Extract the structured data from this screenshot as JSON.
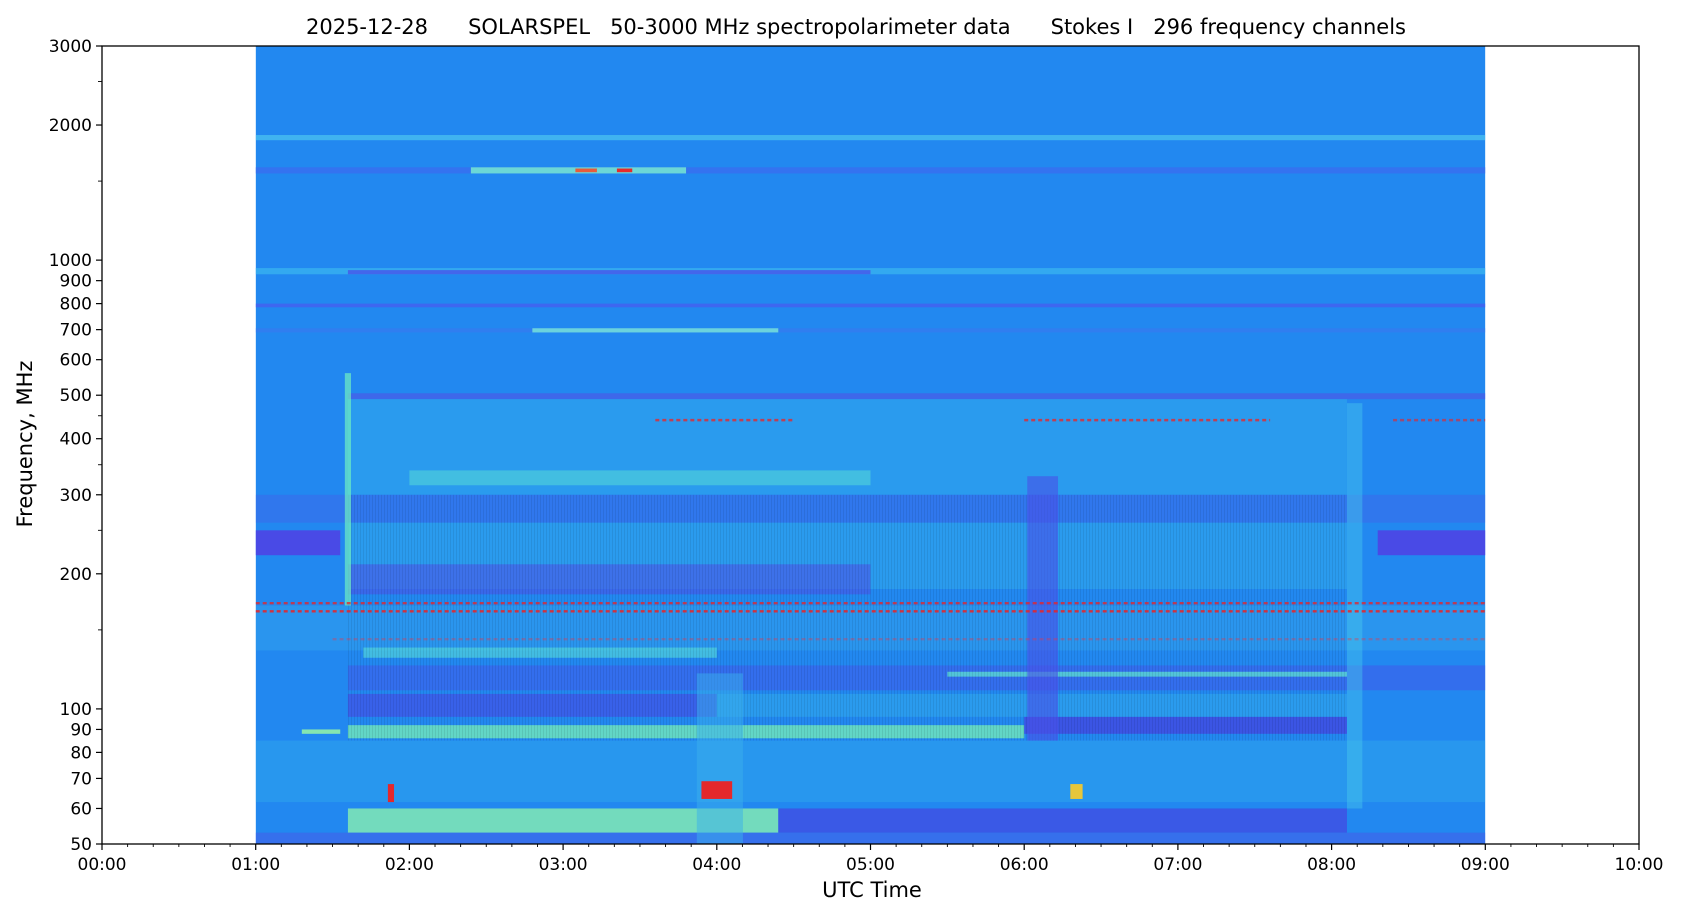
{
  "chart_data": {
    "type": "heatmap",
    "title": "2025-12-28      SOLARSPEL   50-3000 MHz spectropolarimeter data      Stokes I   296 frequency channels",
    "xlabel": "UTC Time",
    "ylabel": "Frequency, MHz",
    "x_range_hours": [
      0,
      10
    ],
    "y_range_mhz": [
      50,
      3000
    ],
    "y_scale": "log",
    "data_range_hours": [
      1,
      9
    ],
    "grid": false,
    "x_ticks": [
      {
        "hour": 0,
        "label": "00:00"
      },
      {
        "hour": 1,
        "label": "01:00"
      },
      {
        "hour": 2,
        "label": "02:00"
      },
      {
        "hour": 3,
        "label": "03:00"
      },
      {
        "hour": 4,
        "label": "04:00"
      },
      {
        "hour": 5,
        "label": "05:00"
      },
      {
        "hour": 6,
        "label": "06:00"
      },
      {
        "hour": 7,
        "label": "07:00"
      },
      {
        "hour": 8,
        "label": "08:00"
      },
      {
        "hour": 9,
        "label": "09:00"
      },
      {
        "hour": 10,
        "label": "10:00"
      }
    ],
    "y_ticks": [
      {
        "mhz": 50,
        "label": "50"
      },
      {
        "mhz": 60,
        "label": "60"
      },
      {
        "mhz": 70,
        "label": "70"
      },
      {
        "mhz": 80,
        "label": "80"
      },
      {
        "mhz": 90,
        "label": "90"
      },
      {
        "mhz": 100,
        "label": "100"
      },
      {
        "mhz": 200,
        "label": "200"
      },
      {
        "mhz": 300,
        "label": "300"
      },
      {
        "mhz": 400,
        "label": "400"
      },
      {
        "mhz": 500,
        "label": "500"
      },
      {
        "mhz": 600,
        "label": "600"
      },
      {
        "mhz": 700,
        "label": "700"
      },
      {
        "mhz": 800,
        "label": "800"
      },
      {
        "mhz": 900,
        "label": "900"
      },
      {
        "mhz": 1000,
        "label": "1000"
      },
      {
        "mhz": 2000,
        "label": "2000"
      },
      {
        "mhz": 3000,
        "label": "3000"
      }
    ],
    "y_minor_ticks_mhz": [
      150,
      250,
      350,
      450,
      1500,
      2500
    ],
    "colors": {
      "background": "#2288f0",
      "low": "#4455ee",
      "mid": "#33bbee",
      "high": "#66f0aa",
      "peak": "#ee2222",
      "dark": "#3a48e6"
    },
    "bands": [
      {
        "f1": 1850,
        "f2": 1900,
        "t1": 1.0,
        "t2": 9.0,
        "color": "#55d0f0",
        "opacity": 0.6
      },
      {
        "f1": 1560,
        "f2": 1610,
        "t1": 1.0,
        "t2": 9.0,
        "color": "#3a6ef0",
        "opacity": 0.8
      },
      {
        "f1": 1560,
        "f2": 1610,
        "t1": 2.4,
        "t2": 3.8,
        "color": "#7af0d0",
        "opacity": 0.8
      },
      {
        "f1": 930,
        "f2": 960,
        "t1": 1.0,
        "t2": 9.0,
        "color": "#3ab8f0",
        "opacity": 0.7
      },
      {
        "f1": 930,
        "f2": 950,
        "t1": 1.6,
        "t2": 5.0,
        "color": "#4a4ae8",
        "opacity": 0.7
      },
      {
        "f1": 785,
        "f2": 800,
        "t1": 1.0,
        "t2": 9.0,
        "color": "#4a5af0",
        "opacity": 0.7
      },
      {
        "f1": 690,
        "f2": 705,
        "t1": 1.0,
        "t2": 9.0,
        "color": "#3a78f0",
        "opacity": 0.6
      },
      {
        "f1": 690,
        "f2": 705,
        "t1": 2.8,
        "t2": 4.4,
        "color": "#7ae8d8",
        "opacity": 0.8
      },
      {
        "f1": 490,
        "f2": 505,
        "t1": 1.6,
        "t2": 9.0,
        "color": "#5a48e4",
        "opacity": 0.5
      },
      {
        "f1": 300,
        "f2": 490,
        "t1": 1.6,
        "t2": 8.1,
        "color": "#38c0ec",
        "opacity": 0.35
      },
      {
        "f1": 315,
        "f2": 340,
        "t1": 2.0,
        "t2": 5.0,
        "color": "#60e8d0",
        "opacity": 0.45
      },
      {
        "f1": 260,
        "f2": 300,
        "t1": 1.0,
        "t2": 9.0,
        "color": "#4a58e8",
        "opacity": 0.35
      },
      {
        "f1": 220,
        "f2": 250,
        "t1": 1.0,
        "t2": 1.55,
        "color": "#5040e4",
        "opacity": 0.85
      },
      {
        "f1": 220,
        "f2": 250,
        "t1": 8.3,
        "t2": 9.0,
        "color": "#5040e4",
        "opacity": 0.85
      },
      {
        "f1": 185,
        "f2": 260,
        "t1": 1.6,
        "t2": 8.1,
        "color": "#38b8ec",
        "opacity": 0.4
      },
      {
        "f1": 180,
        "f2": 210,
        "t1": 1.6,
        "t2": 5.0,
        "color": "#5048e4",
        "opacity": 0.5
      },
      {
        "f1": 135,
        "f2": 170,
        "t1": 1.0,
        "t2": 9.0,
        "color": "#3ab0ec",
        "opacity": 0.35
      },
      {
        "f1": 130,
        "f2": 137,
        "t1": 1.7,
        "t2": 4.0,
        "color": "#58e0d8",
        "opacity": 0.6
      },
      {
        "f1": 110,
        "f2": 125,
        "t1": 1.6,
        "t2": 9.0,
        "color": "#4a50e8",
        "opacity": 0.45
      },
      {
        "f1": 96,
        "f2": 108,
        "t1": 1.6,
        "t2": 4.0,
        "color": "#4848e4",
        "opacity": 0.6
      },
      {
        "f1": 96,
        "f2": 108,
        "t1": 4.0,
        "t2": 8.1,
        "color": "#38b8ec",
        "opacity": 0.4
      },
      {
        "f1": 118,
        "f2": 121,
        "t1": 5.5,
        "t2": 8.1,
        "color": "#60e8d0",
        "opacity": 0.7
      },
      {
        "f1": 86,
        "f2": 92,
        "t1": 1.6,
        "t2": 6.0,
        "color": "#78f0b8",
        "opacity": 0.75
      },
      {
        "f1": 88,
        "f2": 96,
        "t1": 6.0,
        "t2": 8.1,
        "color": "#4444e0",
        "opacity": 0.75
      },
      {
        "f1": 88,
        "f2": 90,
        "t1": 1.3,
        "t2": 1.55,
        "color": "#90f0a8",
        "opacity": 0.9
      },
      {
        "f1": 62,
        "f2": 85,
        "t1": 1.0,
        "t2": 9.0,
        "color": "#38b8ec",
        "opacity": 0.3
      },
      {
        "f1": 53,
        "f2": 60,
        "t1": 1.6,
        "t2": 4.4,
        "color": "#88f0b0",
        "opacity": 0.8
      },
      {
        "f1": 53,
        "f2": 60,
        "t1": 4.4,
        "t2": 8.1,
        "color": "#4840e0",
        "opacity": 0.65
      },
      {
        "f1": 50,
        "f2": 53,
        "t1": 1.0,
        "t2": 9.0,
        "color": "#4a58e8",
        "opacity": 0.5
      }
    ],
    "rfi_lines": [
      {
        "freq": 172,
        "t1": 1.0,
        "t2": 9.0,
        "color": "#ee2222",
        "opacity": 0.75
      },
      {
        "freq": 165,
        "t1": 1.0,
        "t2": 9.0,
        "color": "#ee2222",
        "opacity": 0.85
      },
      {
        "freq": 440,
        "t1": 3.6,
        "t2": 4.5,
        "color": "#ee2222",
        "opacity": 0.75
      },
      {
        "freq": 440,
        "t1": 6.0,
        "t2": 7.6,
        "color": "#ee2222",
        "opacity": 0.75
      },
      {
        "freq": 440,
        "t1": 8.4,
        "t2": 9.0,
        "color": "#ee2222",
        "opacity": 0.6
      },
      {
        "freq": 143,
        "t1": 1.5,
        "t2": 9.0,
        "color": "#ee3344",
        "opacity": 0.35
      }
    ],
    "vertical_features": [
      {
        "t": 1.6,
        "f1": 170,
        "f2": 560,
        "color": "#70f0c0",
        "opacity": 0.7,
        "width_h": 0.04
      },
      {
        "t": 8.15,
        "f1": 60,
        "f2": 480,
        "color": "#48c8ec",
        "opacity": 0.45,
        "width_h": 0.1
      },
      {
        "t": 6.12,
        "f1": 85,
        "f2": 330,
        "color": "#4a50e8",
        "opacity": 0.6,
        "width_h": 0.2
      },
      {
        "t": 4.02,
        "f1": 50,
        "f2": 120,
        "color": "#3ab0ec",
        "opacity": 0.5,
        "width_h": 0.3
      }
    ],
    "bursts": [
      {
        "t1": 1.86,
        "t2": 1.9,
        "f1": 62,
        "f2": 68,
        "color": "#ee2222"
      },
      {
        "t1": 3.9,
        "t2": 4.1,
        "f1": 63,
        "f2": 69,
        "color": "#ee2222"
      },
      {
        "t1": 6.3,
        "t2": 6.38,
        "f1": 63,
        "f2": 68,
        "color": "#f0c830"
      },
      {
        "t1": 3.08,
        "t2": 3.22,
        "f1": 1570,
        "f2": 1600,
        "color": "#ee5533"
      },
      {
        "t1": 3.35,
        "t2": 3.45,
        "f1": 1570,
        "f2": 1600,
        "color": "#ee2222"
      }
    ]
  }
}
